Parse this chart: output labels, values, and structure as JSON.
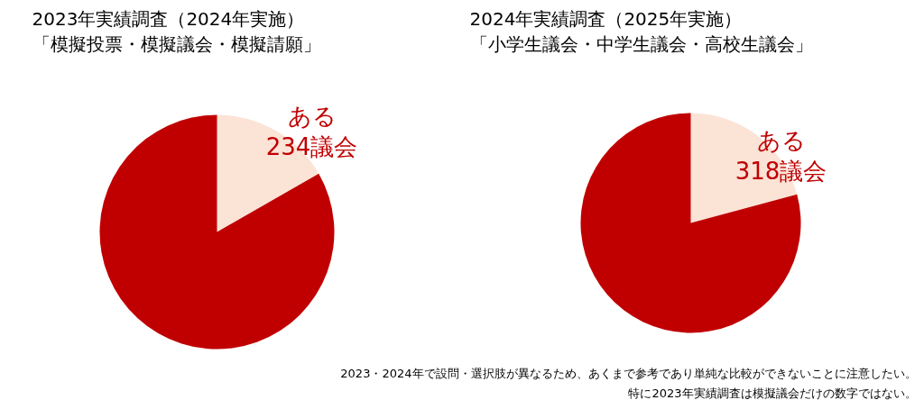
{
  "chart_data": [
    {
      "type": "pie",
      "title": "2023年実績調査（2024年実施）",
      "subtitle": "「模擬投票・模擬議会・模擬請願」",
      "categories": [
        "ある",
        null
      ],
      "values": [
        234,
        1166
      ],
      "colors": [
        "#fbe3d6",
        "#c00000"
      ],
      "value_labels": [
        "234議会",
        null
      ]
    },
    {
      "type": "pie",
      "title": "2024年実績調査（2025年実施）",
      "subtitle": "「小学生議会・中学生議会・高校生議会」",
      "categories": [
        "ある",
        null
      ],
      "values": [
        318,
        1211
      ],
      "colors": [
        "#fbe3d6",
        "#c00000"
      ],
      "value_labels": [
        "318議会",
        null
      ],
      "annotations": [
        "2023・2024年で設問・選択肢が異なるため、あくまで参考であり単純な比較ができないことに注意したい。",
        "特に2023年実績調査は模擬議会だけの数字ではない。"
      ]
    }
  ]
}
